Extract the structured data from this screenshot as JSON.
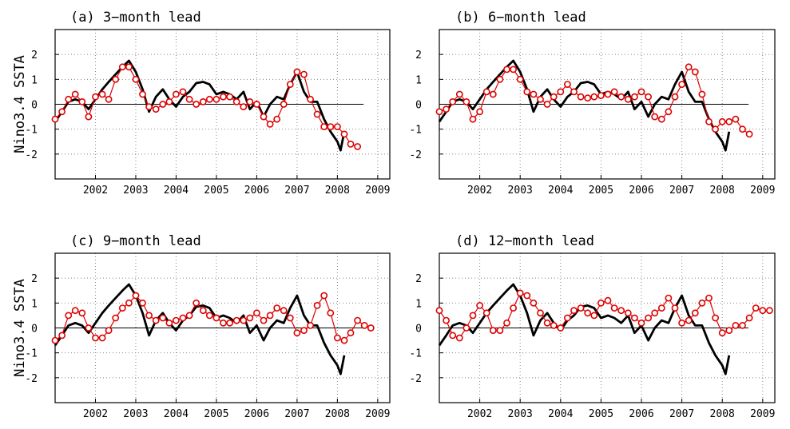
{
  "ylabel": "Nino3.4  SSTA",
  "colors": {
    "observed": "#000000",
    "forecast": "#dd0000",
    "grid": "#888888"
  },
  "chart_data": [
    {
      "type": "line",
      "title": "(a) 3−month lead",
      "xlabel": "",
      "ylabel": "Nino3.4  SSTA",
      "xlim": [
        2001.0,
        2009.3
      ],
      "ylim": [
        -3,
        3
      ],
      "xticks": [
        2002,
        2003,
        2004,
        2005,
        2006,
        2007,
        2008,
        2009
      ],
      "yticks": [
        -2,
        -1,
        0,
        1,
        2
      ],
      "grid": true,
      "series": [
        {
          "style": "solid",
          "x": [
            2001.0,
            2001.17,
            2001.33,
            2001.5,
            2001.67,
            2001.83,
            2002.0,
            2002.17,
            2002.33,
            2002.5,
            2002.67,
            2002.83,
            2003.0,
            2003.17,
            2003.33,
            2003.5,
            2003.67,
            2003.83,
            2004.0,
            2004.17,
            2004.33,
            2004.5,
            2004.67,
            2004.83,
            2005.0,
            2005.17,
            2005.33,
            2005.5,
            2005.67,
            2005.83,
            2006.0,
            2006.17,
            2006.33,
            2006.5,
            2006.67,
            2006.83,
            2007.0,
            2007.17,
            2007.33,
            2007.5,
            2007.67,
            2007.83,
            2008.0,
            2008.08,
            2008.17
          ],
          "values": [
            -0.7,
            -0.3,
            0.1,
            0.2,
            0.1,
            -0.2,
            0.2,
            0.6,
            0.9,
            1.2,
            1.5,
            1.75,
            1.3,
            0.6,
            -0.3,
            0.3,
            0.6,
            0.2,
            -0.1,
            0.3,
            0.5,
            0.85,
            0.9,
            0.8,
            0.4,
            0.5,
            0.4,
            0.2,
            0.5,
            -0.2,
            0.1,
            -0.5,
            0.0,
            0.3,
            0.2,
            0.8,
            1.3,
            0.5,
            0.1,
            0.1,
            -0.6,
            -1.1,
            -1.5,
            -1.85,
            -1.1
          ]
        },
        {
          "style": "circles",
          "x": [
            2001.0,
            2001.17,
            2001.33,
            2001.5,
            2001.67,
            2001.83,
            2002.0,
            2002.17,
            2002.33,
            2002.5,
            2002.67,
            2002.83,
            2003.0,
            2003.17,
            2003.33,
            2003.5,
            2003.67,
            2003.83,
            2004.0,
            2004.17,
            2004.33,
            2004.5,
            2004.67,
            2004.83,
            2005.0,
            2005.17,
            2005.33,
            2005.5,
            2005.67,
            2005.83,
            2006.0,
            2006.17,
            2006.33,
            2006.5,
            2006.67,
            2006.83,
            2007.0,
            2007.17,
            2007.33,
            2007.5,
            2007.67,
            2007.83,
            2008.0,
            2008.17,
            2008.33,
            2008.5
          ],
          "values": [
            -0.6,
            -0.3,
            0.2,
            0.4,
            0.1,
            -0.5,
            0.3,
            0.4,
            0.2,
            1.0,
            1.5,
            1.5,
            1.0,
            0.4,
            -0.1,
            -0.2,
            0.0,
            0.1,
            0.4,
            0.5,
            0.2,
            0.0,
            0.1,
            0.2,
            0.2,
            0.3,
            0.3,
            0.1,
            -0.1,
            0.1,
            0.0,
            -0.5,
            -0.8,
            -0.6,
            0.0,
            0.8,
            1.3,
            1.2,
            0.2,
            -0.4,
            -0.9,
            -0.9,
            -0.9,
            -1.2,
            -1.6,
            -1.7
          ]
        }
      ]
    },
    {
      "type": "line",
      "title": "(b) 6−month lead",
      "xlabel": "",
      "ylabel": "",
      "xlim": [
        2001.0,
        2009.3
      ],
      "ylim": [
        -3,
        3
      ],
      "xticks": [
        2002,
        2003,
        2004,
        2005,
        2006,
        2007,
        2008,
        2009
      ],
      "yticks": [
        -2,
        -1,
        0,
        1,
        2
      ],
      "grid": true,
      "series": [
        {
          "style": "solid",
          "x": [
            2001.0,
            2001.17,
            2001.33,
            2001.5,
            2001.67,
            2001.83,
            2002.0,
            2002.17,
            2002.33,
            2002.5,
            2002.67,
            2002.83,
            2003.0,
            2003.17,
            2003.33,
            2003.5,
            2003.67,
            2003.83,
            2004.0,
            2004.17,
            2004.33,
            2004.5,
            2004.67,
            2004.83,
            2005.0,
            2005.17,
            2005.33,
            2005.5,
            2005.67,
            2005.83,
            2006.0,
            2006.17,
            2006.33,
            2006.5,
            2006.67,
            2006.83,
            2007.0,
            2007.17,
            2007.33,
            2007.5,
            2007.67,
            2007.83,
            2008.0,
            2008.08,
            2008.17
          ],
          "values": [
            -0.7,
            -0.3,
            0.1,
            0.2,
            0.1,
            -0.2,
            0.2,
            0.6,
            0.9,
            1.2,
            1.5,
            1.75,
            1.3,
            0.6,
            -0.3,
            0.3,
            0.6,
            0.2,
            -0.1,
            0.3,
            0.5,
            0.85,
            0.9,
            0.8,
            0.4,
            0.5,
            0.4,
            0.2,
            0.5,
            -0.2,
            0.1,
            -0.5,
            0.0,
            0.3,
            0.2,
            0.8,
            1.3,
            0.5,
            0.1,
            0.1,
            -0.6,
            -1.1,
            -1.5,
            -1.85,
            -1.1
          ]
        },
        {
          "style": "circles",
          "x": [
            2001.0,
            2001.17,
            2001.33,
            2001.5,
            2001.67,
            2001.83,
            2002.0,
            2002.17,
            2002.33,
            2002.5,
            2002.67,
            2002.83,
            2003.0,
            2003.17,
            2003.33,
            2003.5,
            2003.67,
            2003.83,
            2004.0,
            2004.17,
            2004.33,
            2004.5,
            2004.67,
            2004.83,
            2005.0,
            2005.17,
            2005.33,
            2005.5,
            2005.67,
            2005.83,
            2006.0,
            2006.17,
            2006.33,
            2006.5,
            2006.67,
            2006.83,
            2007.0,
            2007.17,
            2007.33,
            2007.5,
            2007.67,
            2007.83,
            2008.0,
            2008.17,
            2008.33,
            2008.5,
            2008.67
          ],
          "values": [
            -0.3,
            -0.2,
            0.1,
            0.4,
            0.1,
            -0.6,
            -0.3,
            0.5,
            0.4,
            1.0,
            1.4,
            1.4,
            1.0,
            0.5,
            0.4,
            0.2,
            0.0,
            0.3,
            0.5,
            0.8,
            0.5,
            0.3,
            0.25,
            0.3,
            0.35,
            0.4,
            0.5,
            0.3,
            0.2,
            0.3,
            0.5,
            0.3,
            -0.5,
            -0.6,
            -0.3,
            0.3,
            0.8,
            1.5,
            1.3,
            0.4,
            -0.7,
            -1.0,
            -0.7,
            -0.7,
            -0.6,
            -1.0,
            -1.2
          ]
        }
      ]
    },
    {
      "type": "line",
      "title": "(c) 9−month lead",
      "xlabel": "",
      "ylabel": "Nino3.4  SSTA",
      "xlim": [
        2001.0,
        2009.3
      ],
      "ylim": [
        -3,
        3
      ],
      "xticks": [
        2002,
        2003,
        2004,
        2005,
        2006,
        2007,
        2008,
        2009
      ],
      "yticks": [
        -2,
        -1,
        0,
        1,
        2
      ],
      "grid": true,
      "series": [
        {
          "style": "solid",
          "x": [
            2001.0,
            2001.17,
            2001.33,
            2001.5,
            2001.67,
            2001.83,
            2002.0,
            2002.17,
            2002.33,
            2002.5,
            2002.67,
            2002.83,
            2003.0,
            2003.17,
            2003.33,
            2003.5,
            2003.67,
            2003.83,
            2004.0,
            2004.17,
            2004.33,
            2004.5,
            2004.67,
            2004.83,
            2005.0,
            2005.17,
            2005.33,
            2005.5,
            2005.67,
            2005.83,
            2006.0,
            2006.17,
            2006.33,
            2006.5,
            2006.67,
            2006.83,
            2007.0,
            2007.17,
            2007.33,
            2007.5,
            2007.67,
            2007.83,
            2008.0,
            2008.08,
            2008.17
          ],
          "values": [
            -0.7,
            -0.3,
            0.1,
            0.2,
            0.1,
            -0.2,
            0.2,
            0.6,
            0.9,
            1.2,
            1.5,
            1.75,
            1.3,
            0.6,
            -0.3,
            0.3,
            0.6,
            0.2,
            -0.1,
            0.3,
            0.5,
            0.85,
            0.9,
            0.8,
            0.4,
            0.5,
            0.4,
            0.2,
            0.5,
            -0.2,
            0.1,
            -0.5,
            0.0,
            0.3,
            0.2,
            0.8,
            1.3,
            0.5,
            0.1,
            0.1,
            -0.6,
            -1.1,
            -1.5,
            -1.85,
            -1.1
          ]
        },
        {
          "style": "circles",
          "x": [
            2001.0,
            2001.17,
            2001.33,
            2001.5,
            2001.67,
            2001.83,
            2002.0,
            2002.17,
            2002.33,
            2002.5,
            2002.67,
            2002.83,
            2003.0,
            2003.17,
            2003.33,
            2003.5,
            2003.67,
            2003.83,
            2004.0,
            2004.17,
            2004.33,
            2004.5,
            2004.67,
            2004.83,
            2005.0,
            2005.17,
            2005.33,
            2005.5,
            2005.67,
            2005.83,
            2006.0,
            2006.17,
            2006.33,
            2006.5,
            2006.67,
            2006.83,
            2007.0,
            2007.17,
            2007.33,
            2007.5,
            2007.67,
            2007.83,
            2008.0,
            2008.17,
            2008.33,
            2008.5,
            2008.67,
            2008.83
          ],
          "values": [
            -0.5,
            -0.3,
            0.5,
            0.7,
            0.6,
            0.0,
            -0.4,
            -0.4,
            -0.1,
            0.4,
            0.8,
            1.0,
            1.3,
            1.0,
            0.5,
            0.3,
            0.4,
            0.2,
            0.3,
            0.4,
            0.5,
            1.0,
            0.7,
            0.5,
            0.4,
            0.2,
            0.2,
            0.3,
            0.3,
            0.4,
            0.6,
            0.3,
            0.5,
            0.8,
            0.7,
            0.4,
            -0.2,
            -0.1,
            0.1,
            0.9,
            1.3,
            0.6,
            -0.4,
            -0.5,
            -0.2,
            0.3,
            0.1,
            0.0
          ]
        }
      ]
    },
    {
      "type": "line",
      "title": "(d) 12−month lead",
      "xlabel": "",
      "ylabel": "",
      "xlim": [
        2001.0,
        2009.3
      ],
      "ylim": [
        -3,
        3
      ],
      "xticks": [
        2002,
        2003,
        2004,
        2005,
        2006,
        2007,
        2008,
        2009
      ],
      "yticks": [
        -2,
        -1,
        0,
        1,
        2
      ],
      "grid": true,
      "series": [
        {
          "style": "solid",
          "x": [
            2001.0,
            2001.17,
            2001.33,
            2001.5,
            2001.67,
            2001.83,
            2002.0,
            2002.17,
            2002.33,
            2002.5,
            2002.67,
            2002.83,
            2003.0,
            2003.17,
            2003.33,
            2003.5,
            2003.67,
            2003.83,
            2004.0,
            2004.17,
            2004.33,
            2004.5,
            2004.67,
            2004.83,
            2005.0,
            2005.17,
            2005.33,
            2005.5,
            2005.67,
            2005.83,
            2006.0,
            2006.17,
            2006.33,
            2006.5,
            2006.67,
            2006.83,
            2007.0,
            2007.17,
            2007.33,
            2007.5,
            2007.67,
            2007.83,
            2008.0,
            2008.08,
            2008.17
          ],
          "values": [
            -0.7,
            -0.3,
            0.1,
            0.2,
            0.1,
            -0.2,
            0.2,
            0.6,
            0.9,
            1.2,
            1.5,
            1.75,
            1.3,
            0.6,
            -0.3,
            0.3,
            0.6,
            0.2,
            -0.1,
            0.3,
            0.5,
            0.85,
            0.9,
            0.8,
            0.4,
            0.5,
            0.4,
            0.2,
            0.5,
            -0.2,
            0.1,
            -0.5,
            0.0,
            0.3,
            0.2,
            0.8,
            1.3,
            0.5,
            0.1,
            0.1,
            -0.6,
            -1.1,
            -1.5,
            -1.85,
            -1.1
          ]
        },
        {
          "style": "circles",
          "x": [
            2001.0,
            2001.17,
            2001.33,
            2001.5,
            2001.67,
            2001.83,
            2002.0,
            2002.17,
            2002.33,
            2002.5,
            2002.67,
            2002.83,
            2003.0,
            2003.17,
            2003.33,
            2003.5,
            2003.67,
            2003.83,
            2004.0,
            2004.17,
            2004.33,
            2004.5,
            2004.67,
            2004.83,
            2005.0,
            2005.17,
            2005.33,
            2005.5,
            2005.67,
            2005.83,
            2006.0,
            2006.17,
            2006.33,
            2006.5,
            2006.67,
            2006.83,
            2007.0,
            2007.17,
            2007.33,
            2007.5,
            2007.67,
            2007.83,
            2008.0,
            2008.17,
            2008.33,
            2008.5,
            2008.67,
            2008.83,
            2009.0,
            2009.17
          ],
          "values": [
            0.7,
            0.3,
            -0.3,
            -0.4,
            0.0,
            0.5,
            0.9,
            0.6,
            -0.1,
            -0.1,
            0.2,
            0.8,
            1.4,
            1.3,
            1.0,
            0.6,
            0.2,
            0.1,
            0.0,
            0.4,
            0.7,
            0.8,
            0.6,
            0.5,
            1.0,
            1.1,
            0.8,
            0.7,
            0.6,
            0.4,
            0.2,
            0.4,
            0.6,
            0.8,
            1.2,
            0.8,
            0.2,
            0.3,
            0.6,
            1.0,
            1.2,
            0.4,
            -0.2,
            -0.1,
            0.1,
            0.1,
            0.4,
            0.8,
            0.7,
            0.7
          ]
        }
      ]
    }
  ]
}
